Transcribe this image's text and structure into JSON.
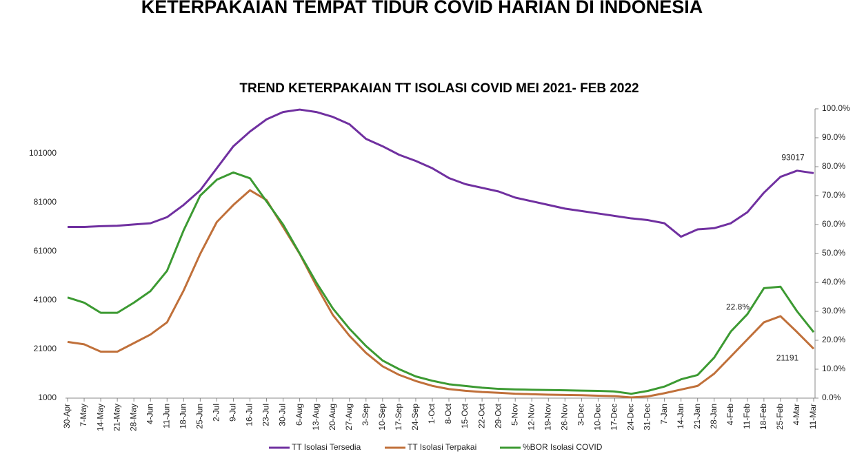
{
  "heading": "KETERPAKAIAN TEMPAT TIDUR COVID HARIAN DI INDONESIA",
  "chart_data": {
    "type": "line",
    "title": "TREND KETERPAKAIAN TT ISOLASI COVID MEI 2021- FEB 2022",
    "categories": [
      "30-Apr",
      "7-May",
      "14-May",
      "21-May",
      "28-May",
      "4-Jun",
      "11-Jun",
      "18-Jun",
      "25-Jun",
      "2-Jul",
      "9-Jul",
      "16-Jul",
      "23-Jul",
      "30-Jul",
      "6-Aug",
      "13-Aug",
      "20-Aug",
      "27-Aug",
      "3-Sep",
      "10-Sep",
      "17-Sep",
      "24-Sep",
      "1-Oct",
      "8-Oct",
      "15-Oct",
      "22-Oct",
      "29-Oct",
      "5-Nov",
      "12-Nov",
      "19-Nov",
      "26-Nov",
      "3-Dec",
      "10-Dec",
      "17-Dec",
      "24-Dec",
      "31-Dec",
      "7-Jan",
      "14-Jan",
      "21-Jan",
      "28-Jan",
      "4-Feb",
      "11-Feb",
      "18-Feb",
      "25-Feb",
      "4-Mar",
      "11-Mar"
    ],
    "series": [
      {
        "name": "TT Isolasi Tersedia",
        "color": "#7030a0",
        "axis": "y",
        "values": [
          71000,
          71000,
          71300,
          71500,
          72000,
          72500,
          75000,
          80000,
          86000,
          95000,
          104000,
          110000,
          115000,
          118000,
          119000,
          118000,
          116000,
          113000,
          107000,
          104000,
          100500,
          98000,
          95000,
          91000,
          88500,
          87000,
          85500,
          83000,
          81500,
          80000,
          78500,
          77500,
          76500,
          75500,
          74500,
          73800,
          72500,
          67000,
          70000,
          70500,
          72500,
          77000,
          85000,
          91500,
          94000,
          93017
        ]
      },
      {
        "name": "TT Isolasi Terpakai",
        "color": "#c0703a",
        "axis": "y",
        "values": [
          24000,
          23000,
          20000,
          20000,
          23500,
          27000,
          32000,
          45000,
          60000,
          73000,
          80000,
          86000,
          82000,
          71000,
          60000,
          47000,
          35000,
          26500,
          19500,
          14000,
          10500,
          8000,
          6000,
          4700,
          4000,
          3500,
          3200,
          2800,
          2600,
          2400,
          2300,
          2200,
          2000,
          1800,
          1300,
          1700,
          3000,
          4500,
          6000,
          11000,
          18000,
          25000,
          32000,
          34500,
          28000,
          21191
        ]
      },
      {
        "name": "%BOR Isolasi COVID",
        "color": "#3c9a32",
        "axis": "y2",
        "values": [
          34.8,
          33,
          29.5,
          29.5,
          33,
          37,
          44,
          58,
          70,
          75.5,
          78,
          76,
          68,
          60,
          50,
          40,
          31,
          24,
          18,
          13,
          10,
          7.5,
          6,
          4.8,
          4.2,
          3.6,
          3.2,
          3,
          2.9,
          2.8,
          2.7,
          2.6,
          2.5,
          2.3,
          1.5,
          2.5,
          4,
          6.5,
          8,
          14,
          23,
          29,
          38,
          38.5,
          30,
          22.8
        ],
        "value_labels": [
          null,
          null,
          null,
          null,
          null,
          null,
          null,
          null,
          null,
          null,
          null,
          null,
          null,
          null,
          null,
          null,
          null,
          null,
          null,
          null,
          null,
          null,
          null,
          null,
          null,
          null,
          null,
          null,
          null,
          null,
          null,
          null,
          null,
          null,
          null,
          null,
          null,
          null,
          null,
          null,
          null,
          null,
          null,
          null,
          null,
          "22.8%"
        ]
      }
    ],
    "ylim": [
      1000,
      119300
    ],
    "yticks": [
      1000,
      21000,
      41000,
      61000,
      81000,
      101000
    ],
    "y2lim": [
      0,
      100
    ],
    "y2ticks": [
      {
        "value": 0,
        "label": "0.0%"
      },
      {
        "value": 10,
        "label": "10.0%"
      },
      {
        "value": 20,
        "label": "20.0%"
      },
      {
        "value": 30,
        "label": "30.0%"
      },
      {
        "value": 40,
        "label": "40.0%"
      },
      {
        "value": 50,
        "label": "50.0%"
      },
      {
        "value": 60,
        "label": "60.0%"
      },
      {
        "value": 70,
        "label": "70.0%"
      },
      {
        "value": 80,
        "label": "80.0%"
      },
      {
        "value": 90,
        "label": "90.0%"
      },
      {
        "value": 100,
        "label": "100.0%"
      }
    ],
    "legend": "bottom",
    "grid": false
  }
}
